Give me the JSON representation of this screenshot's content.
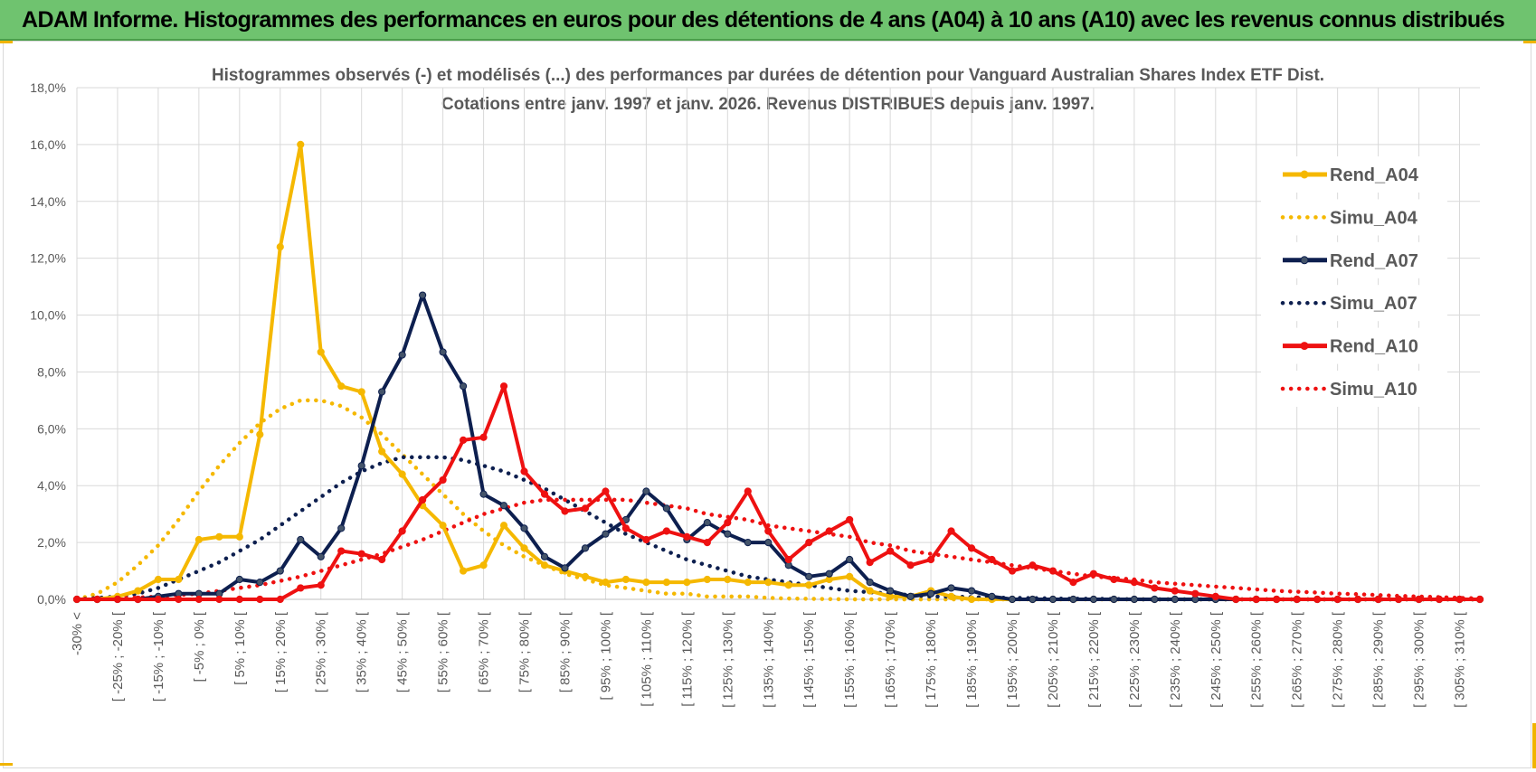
{
  "banner": {
    "title": "ADAM Informe. Histogrammes des performances en euros pour des détentions de 4 ans (A04) à 10 ans (A10) avec les revenus connus distribués"
  },
  "chart_data": {
    "type": "line",
    "title": "Histogrammes observés (-) et modélisés (...) des performances par durées de détention pour Vanguard Australian Shares Index ETF Dist.",
    "subtitle": "Cotations entre janv. 1997 et janv. 2026. Revenus DISTRIBUES depuis janv. 1997.",
    "xlabel": "",
    "ylabel": "",
    "ylim": [
      0,
      18
    ],
    "yticks": [
      "0,0%",
      "2,0%",
      "4,0%",
      "6,0%",
      "8,0%",
      "10,0%",
      "12,0%",
      "14,0%",
      "16,0%",
      "18,0%"
    ],
    "grid": true,
    "legend_position": "right",
    "categories": [
      "-30% <",
      "",
      "[ -25% ; -20% [",
      "",
      "[ -15% ; -10% [",
      "",
      "[ -5% ; 0% [",
      "",
      "[ 5% ; 10% [",
      "",
      "[ 15% ; 20% [",
      "",
      "[ 25% ; 30% [",
      "",
      "[ 35% ; 40% [",
      "",
      "[ 45% ; 50% [",
      "",
      "[ 55% ; 60% [",
      "",
      "[ 65% ; 70% [",
      "",
      "[ 75% ; 80% [",
      "",
      "[ 85% ; 90% [",
      "",
      "[ 95% ; 100% [",
      "",
      "[ 105% ; 110% [",
      "",
      "[ 115% ; 120% [",
      "",
      "[ 125% ; 130% [",
      "",
      "[ 135% ; 140% [",
      "",
      "[ 145% ; 150% [",
      "",
      "[ 155% ; 160% [",
      "",
      "[ 165% ; 170% [",
      "",
      "[ 175% ; 180% [",
      "",
      "[ 185% ; 190% [",
      "",
      "[ 195% ; 200% [",
      "",
      "[ 205% ; 210% [",
      "",
      "[ 215% ; 220% [",
      "",
      "[ 225% ; 230% [",
      "",
      "[ 235% ; 240% [",
      "",
      "[ 245% ; 250% [",
      "",
      "[ 255% ; 260% [",
      "",
      "[ 265% ; 270% [",
      "",
      "[ 275% ; 280% [",
      "",
      "[ 285% ; 290% [",
      "",
      "[ 295% ; 300% [",
      "",
      "[ 305% ; 310% [",
      ""
    ],
    "series": [
      {
        "name": "Rend_A04",
        "color": "#f5b800",
        "style": "solid",
        "marker": true,
        "values": [
          0,
          0,
          0.1,
          0.3,
          0.7,
          0.7,
          2.1,
          2.2,
          2.2,
          5.8,
          12.4,
          16.0,
          8.7,
          7.5,
          7.3,
          5.2,
          4.4,
          3.3,
          2.6,
          1.0,
          1.2,
          2.6,
          1.8,
          1.2,
          1.0,
          0.8,
          0.6,
          0.7,
          0.6,
          0.6,
          0.6,
          0.7,
          0.7,
          0.6,
          0.6,
          0.5,
          0.5,
          0.7,
          0.8,
          0.3,
          0.1,
          0.1,
          0.3,
          0.1,
          0.0,
          0.0,
          0.0,
          0.0,
          0.0,
          0.0,
          0.0,
          0.0,
          0.0,
          0.0,
          0.0,
          0.0,
          0.0,
          0.0,
          0.0,
          0.0,
          0.0,
          0.0,
          0.0,
          0.0,
          0.0,
          0.0,
          0.0,
          0.0,
          0.0,
          0.0
        ]
      },
      {
        "name": "Simu_A04",
        "color": "#f5b800",
        "style": "dotted",
        "marker": false,
        "values": [
          0.0,
          0.2,
          0.6,
          1.2,
          1.9,
          2.8,
          3.8,
          4.7,
          5.5,
          6.2,
          6.7,
          7.0,
          7.0,
          6.8,
          6.4,
          5.8,
          5.1,
          4.4,
          3.7,
          3.0,
          2.4,
          1.9,
          1.5,
          1.2,
          0.9,
          0.7,
          0.5,
          0.4,
          0.3,
          0.2,
          0.2,
          0.1,
          0.1,
          0.1,
          0.05,
          0.03,
          0.02,
          0.01,
          0.0,
          0.0,
          0.0,
          0.0,
          0.0,
          0.0,
          0.0,
          0.0,
          0.0,
          0.0,
          0.0,
          0.0,
          0.0,
          0.0,
          0.0,
          0.0,
          0.0,
          0.0,
          0.0,
          0.0,
          0.0,
          0.0,
          0.0,
          0.0,
          0.0,
          0.0,
          0.0,
          0.0,
          0.0,
          0.0,
          0.0,
          0.0
        ]
      },
      {
        "name": "Rend_A07",
        "color": "#0d1f4f",
        "style": "solid",
        "marker": true,
        "values": [
          0,
          0,
          0,
          0,
          0.1,
          0.2,
          0.2,
          0.2,
          0.7,
          0.6,
          1.0,
          2.1,
          1.5,
          2.5,
          4.7,
          7.3,
          8.6,
          10.7,
          8.7,
          7.5,
          3.7,
          3.3,
          2.5,
          1.5,
          1.1,
          1.8,
          2.3,
          2.8,
          3.8,
          3.2,
          2.1,
          2.7,
          2.3,
          2.0,
          2.0,
          1.2,
          0.8,
          0.9,
          1.4,
          0.6,
          0.3,
          0.1,
          0.2,
          0.4,
          0.3,
          0.1,
          0.0,
          0.0,
          0.0,
          0.0,
          0.0,
          0.0,
          0.0,
          0.0,
          0.0,
          0.0,
          0.0,
          0.0,
          0.0,
          0.0,
          0.0,
          0.0,
          0.0,
          0.0,
          0.0,
          0.0,
          0.0,
          0.0,
          0.0,
          0.0
        ]
      },
      {
        "name": "Simu_A07",
        "color": "#0d1f4f",
        "style": "dotted",
        "marker": false,
        "values": [
          0.0,
          0.05,
          0.1,
          0.2,
          0.4,
          0.7,
          1.0,
          1.3,
          1.7,
          2.1,
          2.6,
          3.1,
          3.6,
          4.1,
          4.5,
          4.8,
          5.0,
          5.0,
          5.0,
          4.9,
          4.7,
          4.5,
          4.2,
          3.9,
          3.5,
          3.1,
          2.7,
          2.3,
          2.0,
          1.7,
          1.4,
          1.2,
          1.0,
          0.8,
          0.7,
          0.6,
          0.5,
          0.4,
          0.3,
          0.25,
          0.2,
          0.15,
          0.1,
          0.1,
          0.08,
          0.06,
          0.05,
          0.04,
          0.03,
          0.02,
          0.02,
          0.01,
          0.0,
          0.0,
          0.0,
          0.0,
          0.0,
          0.0,
          0.0,
          0.0,
          0.0,
          0.0,
          0.0,
          0.0,
          0.0,
          0.0,
          0.0,
          0.0,
          0.0,
          0.0
        ]
      },
      {
        "name": "Rend_A10",
        "color": "#ee1111",
        "style": "solid",
        "marker": true,
        "values": [
          0,
          0,
          0,
          0,
          0,
          0,
          0,
          0,
          0,
          0,
          0,
          0.4,
          0.5,
          1.7,
          1.6,
          1.4,
          2.4,
          3.5,
          4.2,
          5.6,
          5.7,
          7.5,
          4.5,
          3.7,
          3.1,
          3.2,
          3.8,
          2.5,
          2.1,
          2.4,
          2.2,
          2.0,
          2.7,
          3.8,
          2.4,
          1.4,
          2.0,
          2.4,
          2.8,
          1.3,
          1.7,
          1.2,
          1.4,
          2.4,
          1.8,
          1.4,
          1.0,
          1.2,
          1.0,
          0.6,
          0.9,
          0.7,
          0.6,
          0.4,
          0.3,
          0.2,
          0.1,
          0.0,
          0.0,
          0.0,
          0.0,
          0.0,
          0.0,
          0.0,
          0.0,
          0.0,
          0.0,
          0.0,
          0.0,
          0.0
        ]
      },
      {
        "name": "Simu_A10",
        "color": "#ee1111",
        "style": "dotted",
        "marker": false,
        "values": [
          0.0,
          0.02,
          0.04,
          0.06,
          0.1,
          0.15,
          0.2,
          0.3,
          0.4,
          0.5,
          0.65,
          0.8,
          1.0,
          1.2,
          1.4,
          1.6,
          1.85,
          2.1,
          2.4,
          2.7,
          3.0,
          3.2,
          3.4,
          3.5,
          3.5,
          3.5,
          3.5,
          3.5,
          3.4,
          3.3,
          3.2,
          3.0,
          2.9,
          2.8,
          2.6,
          2.5,
          2.4,
          2.3,
          2.2,
          2.0,
          1.9,
          1.7,
          1.6,
          1.5,
          1.4,
          1.3,
          1.2,
          1.1,
          1.0,
          0.9,
          0.8,
          0.75,
          0.7,
          0.6,
          0.55,
          0.5,
          0.45,
          0.4,
          0.35,
          0.3,
          0.27,
          0.24,
          0.2,
          0.18,
          0.15,
          0.12,
          0.1,
          0.08,
          0.05,
          0.03
        ]
      }
    ]
  }
}
